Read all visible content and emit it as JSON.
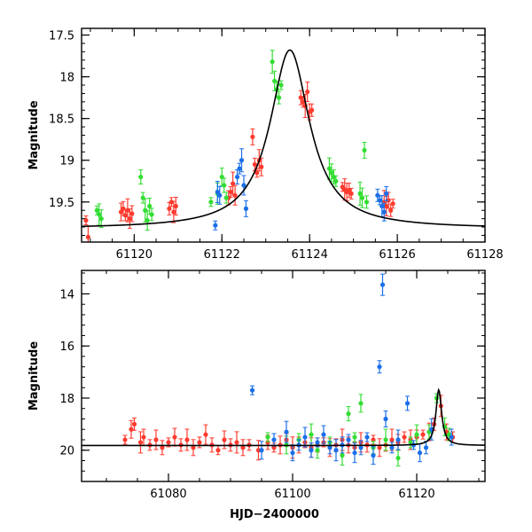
{
  "chart_data": [
    {
      "type": "scatter",
      "title": "",
      "xlabel": "",
      "ylabel": "Magnitude",
      "xlim": [
        61118.8,
        61128
      ],
      "ylim": [
        19.98,
        17.42
      ],
      "y_inverted": true,
      "x_ticks": [
        61120,
        61122,
        61124,
        61126,
        61128
      ],
      "x_tick_labels": [
        "61120",
        "61122",
        "61124",
        "61126",
        "61128"
      ],
      "y_ticks": [
        17.5,
        18,
        18.5,
        19,
        19.5
      ],
      "y_tick_labels": [
        "17.5",
        "18",
        "18.5",
        "19",
        "19.5"
      ],
      "model": {
        "name": "microlensing model",
        "color": "#000000",
        "baseline": 19.82,
        "peak_mag": 17.68,
        "t0": 61123.55,
        "half_width": 0.55
      },
      "series": [
        {
          "name": "red",
          "color": "#ff3b2f",
          "points": [
            [
              61118.9,
              19.72
            ],
            [
              61118.95,
              19.92
            ],
            [
              61119.7,
              19.62
            ],
            [
              61119.75,
              19.58
            ],
            [
              61119.8,
              19.66
            ],
            [
              61119.85,
              19.6
            ],
            [
              61119.9,
              19.7
            ],
            [
              61119.95,
              19.64
            ],
            [
              61120.8,
              19.58
            ],
            [
              61120.85,
              19.5
            ],
            [
              61120.9,
              19.62
            ],
            [
              61120.95,
              19.55
            ],
            [
              61122.15,
              19.45
            ],
            [
              61122.2,
              19.38
            ],
            [
              61122.25,
              19.28
            ],
            [
              61122.3,
              19.42
            ],
            [
              61122.7,
              18.72
            ],
            [
              61122.75,
              19.05
            ],
            [
              61122.8,
              19.15
            ],
            [
              61122.85,
              19.0
            ],
            [
              61122.9,
              19.08
            ],
            [
              61123.8,
              18.25
            ],
            [
              61123.85,
              18.3
            ],
            [
              61123.9,
              18.35
            ],
            [
              61123.95,
              18.18
            ],
            [
              61124.0,
              18.42
            ],
            [
              61124.05,
              18.4
            ],
            [
              61124.75,
              19.32
            ],
            [
              61124.8,
              19.35
            ],
            [
              61124.85,
              19.38
            ],
            [
              61124.9,
              19.36
            ],
            [
              61124.95,
              19.4
            ],
            [
              61125.7,
              19.5
            ],
            [
              61125.75,
              19.55
            ],
            [
              61125.8,
              19.48
            ],
            [
              61125.85,
              19.6
            ],
            [
              61125.9,
              19.52
            ]
          ]
        },
        {
          "name": "green",
          "color": "#33dd33",
          "points": [
            [
              61119.15,
              19.6
            ],
            [
              61119.2,
              19.65
            ],
            [
              61119.25,
              19.7
            ],
            [
              61120.15,
              19.2
            ],
            [
              61120.2,
              19.45
            ],
            [
              61120.25,
              19.6
            ],
            [
              61120.3,
              19.72
            ],
            [
              61120.35,
              19.55
            ],
            [
              61120.4,
              19.65
            ],
            [
              61121.75,
              19.5
            ],
            [
              61121.9,
              19.4
            ],
            [
              61122.0,
              19.2
            ],
            [
              61122.05,
              19.3
            ],
            [
              61122.1,
              19.45
            ],
            [
              61123.15,
              17.82
            ],
            [
              61123.2,
              18.05
            ],
            [
              61123.25,
              18.15
            ],
            [
              61123.3,
              18.25
            ],
            [
              61123.35,
              18.1
            ],
            [
              61124.45,
              19.1
            ],
            [
              61124.5,
              19.15
            ],
            [
              61124.55,
              19.2
            ],
            [
              61124.6,
              19.25
            ],
            [
              61125.15,
              19.4
            ],
            [
              61125.2,
              19.45
            ],
            [
              61125.25,
              18.88
            ],
            [
              61125.3,
              19.5
            ]
          ]
        },
        {
          "name": "blue",
          "color": "#1a6fe8",
          "points": [
            [
              61121.85,
              19.78
            ],
            [
              61121.9,
              19.38
            ],
            [
              61121.95,
              19.42
            ],
            [
              61122.35,
              19.2
            ],
            [
              61122.4,
              19.1
            ],
            [
              61122.45,
              19.0
            ],
            [
              61122.5,
              19.3
            ],
            [
              61122.55,
              19.58
            ],
            [
              61125.55,
              19.42
            ],
            [
              61125.6,
              19.48
            ],
            [
              61125.65,
              19.55
            ],
            [
              61125.7,
              19.62
            ],
            [
              61125.75,
              19.4
            ]
          ]
        }
      ]
    },
    {
      "type": "scatter",
      "title": "",
      "xlabel": "HJD−2400000",
      "ylabel": "Magnitude",
      "xlim": [
        61066,
        61131
      ],
      "ylim": [
        21.2,
        13.1
      ],
      "y_inverted": true,
      "x_ticks": [
        61080,
        61100,
        61120
      ],
      "x_tick_labels": [
        "61080",
        "61100",
        "61120"
      ],
      "y_ticks": [
        14,
        16,
        18,
        20
      ],
      "y_tick_labels": [
        "14",
        "16",
        "18",
        "20"
      ],
      "model": {
        "name": "microlensing model",
        "color": "#000000",
        "baseline": 19.82,
        "peak_mag": 17.68,
        "t0": 61123.55,
        "half_width": 0.55
      },
      "series": [
        {
          "name": "red",
          "color": "#ff3b2f",
          "points": [
            [
              61073,
              19.6
            ],
            [
              61074,
              19.2
            ],
            [
              61074.5,
              19.0
            ],
            [
              61075.5,
              19.7
            ],
            [
              61076,
              19.5
            ],
            [
              61077,
              19.8
            ],
            [
              61078,
              19.6
            ],
            [
              61079,
              19.9
            ],
            [
              61080,
              19.7
            ],
            [
              61081,
              19.5
            ],
            [
              61082,
              19.8
            ],
            [
              61083,
              19.6
            ],
            [
              61084,
              19.9
            ],
            [
              61085,
              19.7
            ],
            [
              61086,
              19.4
            ],
            [
              61087,
              19.8
            ],
            [
              61088,
              20.0
            ],
            [
              61089,
              19.6
            ],
            [
              61090,
              19.8
            ],
            [
              61091,
              19.7
            ],
            [
              61092,
              19.9
            ],
            [
              61093,
              19.8
            ],
            [
              61094.5,
              20.0
            ],
            [
              61096,
              19.7
            ],
            [
              61097,
              19.9
            ],
            [
              61098,
              19.8
            ],
            [
              61099,
              19.6
            ],
            [
              61100,
              19.9
            ],
            [
              61101,
              19.8
            ],
            [
              61102,
              19.7
            ],
            [
              61103,
              19.9
            ],
            [
              61104,
              19.8
            ],
            [
              61105,
              19.7
            ],
            [
              61106,
              19.9
            ],
            [
              61107,
              19.8
            ],
            [
              61108,
              19.6
            ],
            [
              61109,
              19.8
            ],
            [
              61110,
              19.9
            ],
            [
              61111,
              19.7
            ],
            [
              61112,
              19.8
            ],
            [
              61113,
              19.6
            ],
            [
              61114,
              19.9
            ],
            [
              61115,
              19.8
            ],
            [
              61116,
              19.6
            ],
            [
              61117,
              19.7
            ],
            [
              61118,
              19.5
            ],
            [
              61119,
              19.6
            ],
            [
              61120,
              19.5
            ],
            [
              61121,
              19.4
            ],
            [
              61122,
              19.3
            ],
            [
              61122.8,
              19.0
            ],
            [
              61123.9,
              18.3
            ],
            [
              61124.8,
              19.3
            ],
            [
              61125.8,
              19.5
            ]
          ]
        },
        {
          "name": "green",
          "color": "#33dd33",
          "points": [
            [
              61096,
              19.5
            ],
            [
              61099,
              19.8
            ],
            [
              61101,
              19.6
            ],
            [
              61103,
              19.4
            ],
            [
              61104,
              20.0
            ],
            [
              61106,
              19.7
            ],
            [
              61108,
              20.2
            ],
            [
              61109,
              18.6
            ],
            [
              61110,
              19.5
            ],
            [
              61111,
              18.2
            ],
            [
              61113,
              19.9
            ],
            [
              61115,
              19.6
            ],
            [
              61117,
              20.3
            ],
            [
              61119,
              19.7
            ],
            [
              61120,
              19.4
            ],
            [
              61122,
              19.3
            ],
            [
              61123.2,
              18.0
            ],
            [
              61124.5,
              19.1
            ],
            [
              61125.2,
              19.4
            ]
          ]
        },
        {
          "name": "blue",
          "color": "#1a6fe8",
          "points": [
            [
              61093.5,
              17.7
            ],
            [
              61095,
              20.0
            ],
            [
              61097,
              19.6
            ],
            [
              61099,
              19.3
            ],
            [
              61100,
              20.1
            ],
            [
              61101,
              19.8
            ],
            [
              61102,
              19.5
            ],
            [
              61103,
              20.0
            ],
            [
              61104,
              19.7
            ],
            [
              61105,
              19.4
            ],
            [
              61106,
              19.9
            ],
            [
              61107,
              20.0
            ],
            [
              61108,
              19.8
            ],
            [
              61109,
              19.6
            ],
            [
              61110,
              20.1
            ],
            [
              61111,
              19.9
            ],
            [
              61112,
              19.5
            ],
            [
              61113,
              20.2
            ],
            [
              61114,
              16.8
            ],
            [
              61114.5,
              13.65
            ],
            [
              61115,
              18.8
            ],
            [
              61116,
              19.9
            ],
            [
              61117,
              19.6
            ],
            [
              61118.5,
              18.2
            ],
            [
              61119.5,
              19.8
            ],
            [
              61120.5,
              20.1
            ],
            [
              61121.5,
              19.9
            ],
            [
              61122.4,
              19.2
            ],
            [
              61125.6,
              19.5
            ]
          ]
        }
      ]
    }
  ]
}
